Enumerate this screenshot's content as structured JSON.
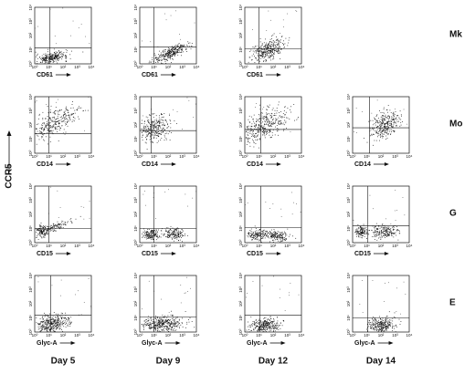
{
  "figure": {
    "y_label": "CCR5",
    "tick_labels": [
      "10⁰",
      "10¹",
      "10²",
      "10³",
      "10⁴"
    ],
    "column_labels": [
      "Day 5",
      "Day 9",
      "Day 12",
      "Day 14"
    ],
    "rows": [
      {
        "label": "Mk",
        "panels": [
          {
            "x_label": "CD61"
          },
          {
            "x_label": "CD61"
          },
          {
            "x_label": "CD61"
          }
        ]
      },
      {
        "label": "Mo",
        "panels": [
          {
            "x_label": "CD14"
          },
          {
            "x_label": "CD14"
          },
          {
            "x_label": "CD14"
          },
          {
            "x_label": "CD14"
          }
        ]
      },
      {
        "label": "G",
        "panels": [
          {
            "x_label": "CD15"
          },
          {
            "x_label": "CD15"
          },
          {
            "x_label": "CD15"
          },
          {
            "x_label": "CD15"
          }
        ]
      },
      {
        "label": "E",
        "panels": [
          {
            "x_label": "Glyc-A"
          },
          {
            "x_label": "Glyc-A"
          },
          {
            "x_label": "Glyc-A"
          },
          {
            "x_label": "Glyc-A"
          }
        ]
      }
    ]
  }
}
